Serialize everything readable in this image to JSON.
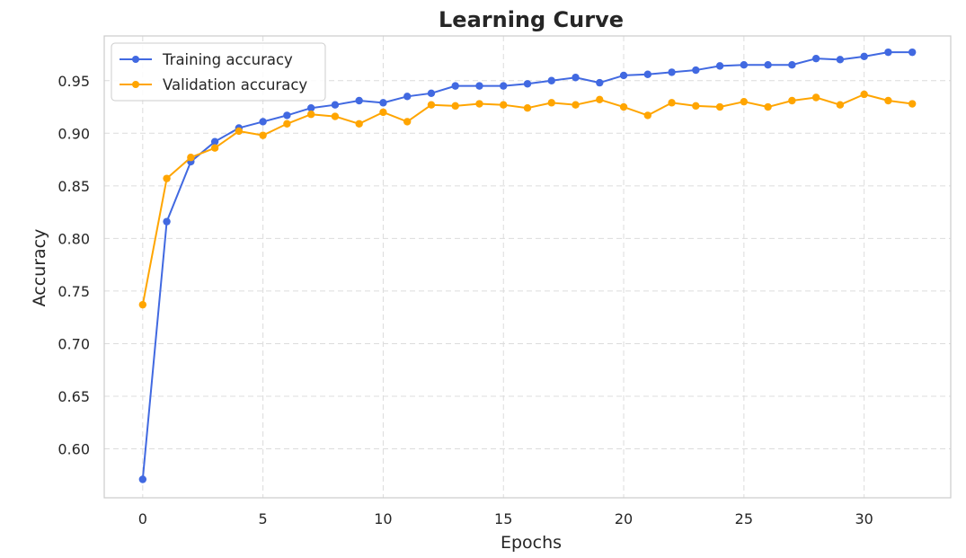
{
  "chart_data": {
    "type": "line",
    "title": "Learning Curve",
    "xlabel": "Epochs",
    "ylabel": "Accuracy",
    "xlim": [
      -1.6,
      33.6
    ],
    "ylim": [
      0.5535,
      0.9925
    ],
    "xticks": [
      0,
      5,
      10,
      15,
      20,
      25,
      30
    ],
    "yticks": [
      0.6,
      0.65,
      0.7,
      0.75,
      0.8,
      0.85,
      0.9,
      0.95
    ],
    "ytick_labels": [
      "0.60",
      "0.65",
      "0.70",
      "0.75",
      "0.80",
      "0.85",
      "0.90",
      "0.95"
    ],
    "xtick_labels": [
      "0",
      "5",
      "10",
      "15",
      "20",
      "25",
      "30"
    ],
    "grid": true,
    "legend_position": "top-left",
    "x": [
      0,
      1,
      2,
      3,
      4,
      5,
      6,
      7,
      8,
      9,
      10,
      11,
      12,
      13,
      14,
      15,
      16,
      17,
      18,
      19,
      20,
      21,
      22,
      23,
      24,
      25,
      26,
      27,
      28,
      29,
      30,
      31,
      32
    ],
    "series": [
      {
        "name": "Training accuracy",
        "color": "#4169e1",
        "values": [
          0.571,
          0.816,
          0.873,
          0.892,
          0.905,
          0.911,
          0.917,
          0.924,
          0.927,
          0.931,
          0.929,
          0.935,
          0.938,
          0.945,
          0.945,
          0.945,
          0.947,
          0.95,
          0.953,
          0.948,
          0.955,
          0.956,
          0.958,
          0.96,
          0.964,
          0.965,
          0.965,
          0.965,
          0.971,
          0.97,
          0.973,
          0.977,
          0.977
        ]
      },
      {
        "name": "Validation accuracy",
        "color": "#ffa500",
        "values": [
          0.737,
          0.857,
          0.877,
          0.886,
          0.902,
          0.898,
          0.909,
          0.918,
          0.916,
          0.909,
          0.92,
          0.911,
          0.927,
          0.926,
          0.928,
          0.927,
          0.924,
          0.929,
          0.927,
          0.932,
          0.925,
          0.917,
          0.929,
          0.926,
          0.925,
          0.93,
          0.925,
          0.931,
          0.934,
          0.927,
          0.937,
          0.931,
          0.928
        ]
      }
    ]
  }
}
